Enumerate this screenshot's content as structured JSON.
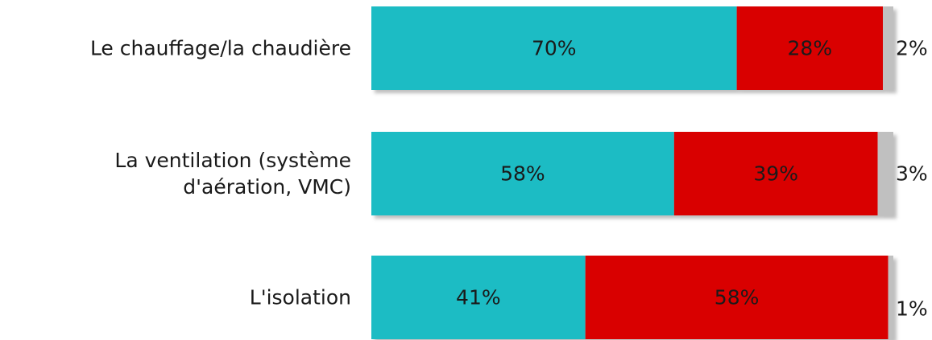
{
  "chart_data": {
    "type": "bar",
    "orientation": "horizontal",
    "stacked": true,
    "categories": [
      [
        "Le chauffage/la chaudière"
      ],
      [
        "La ventilation (système",
        "d'aération, VMC)"
      ],
      [
        "L'isolation"
      ]
    ],
    "series": [
      {
        "values": [
          70,
          58,
          41
        ],
        "labels": [
          "70%",
          "58%",
          "41%"
        ]
      },
      {
        "values": [
          28,
          39,
          58
        ],
        "labels": [
          "28%",
          "39%",
          "58%"
        ]
      },
      {
        "values": [
          2,
          3,
          1
        ],
        "labels": [
          "2%",
          "3%",
          "1%"
        ]
      }
    ],
    "colors": [
      "#1bbcc4",
      "#d90000",
      "#c0c0c0"
    ],
    "label_colors": [
      "#1a1a1a",
      "#1a1a1a",
      "#1a1a1a"
    ],
    "xlim": [
      0,
      100
    ],
    "grid": false,
    "legend": "none"
  }
}
